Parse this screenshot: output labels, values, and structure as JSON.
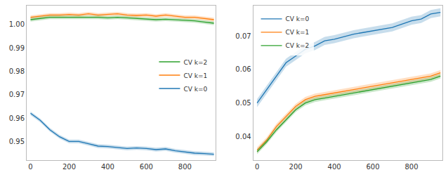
{
  "chart_data": [
    {
      "type": "line",
      "x": [
        0,
        50,
        100,
        150,
        200,
        250,
        300,
        350,
        400,
        450,
        500,
        550,
        600,
        650,
        700,
        750,
        800,
        850,
        900,
        950
      ],
      "series": [
        {
          "name": "CV k=0",
          "color": "#1f77b4",
          "values": [
            0.962,
            0.959,
            0.955,
            0.952,
            0.95,
            0.95,
            0.949,
            0.948,
            0.9478,
            0.9475,
            0.947,
            0.9472,
            0.947,
            0.9465,
            0.9468,
            0.946,
            0.9455,
            0.945,
            0.9448,
            0.9445
          ],
          "errors": [
            0.0008,
            0.0008,
            0.0008,
            0.0008,
            0.0008,
            0.0008,
            0.0008,
            0.0008,
            0.0008,
            0.0008,
            0.0008,
            0.0008,
            0.0008,
            0.0008,
            0.0008,
            0.0008,
            0.0008,
            0.0008,
            0.0008,
            0.0008
          ]
        },
        {
          "name": "CV k=1",
          "color": "#ff7f0e",
          "values": [
            1.003,
            1.0035,
            1.004,
            1.004,
            1.0042,
            1.004,
            1.0045,
            1.004,
            1.0042,
            1.0045,
            1.004,
            1.0038,
            1.004,
            1.0035,
            1.004,
            1.0035,
            1.003,
            1.003,
            1.0025,
            1.002
          ],
          "errors": [
            0.0008,
            0.0008,
            0.0008,
            0.0008,
            0.0008,
            0.0008,
            0.0008,
            0.0008,
            0.0008,
            0.0008,
            0.0008,
            0.0008,
            0.0008,
            0.0008,
            0.0008,
            0.0008,
            0.0008,
            0.0008,
            0.0008,
            0.0008
          ]
        },
        {
          "name": "CV k=2",
          "color": "#2ca02c",
          "values": [
            1.002,
            1.0025,
            1.003,
            1.003,
            1.003,
            1.003,
            1.0032,
            1.003,
            1.0028,
            1.003,
            1.0028,
            1.0025,
            1.0022,
            1.002,
            1.0022,
            1.002,
            1.0018,
            1.0015,
            1.001,
            1.0005
          ],
          "errors": [
            0.0008,
            0.0008,
            0.0008,
            0.0008,
            0.0008,
            0.0008,
            0.0008,
            0.0008,
            0.0008,
            0.0008,
            0.0008,
            0.0008,
            0.0008,
            0.0008,
            0.0008,
            0.0008,
            0.0008,
            0.0008,
            0.0008,
            0.0008
          ]
        }
      ],
      "xlim": [
        -20,
        960
      ],
      "xticks": [
        0,
        200,
        400,
        600,
        800
      ],
      "ylim": [
        0.942,
        1.008
      ],
      "yticks": [
        0.95,
        0.96,
        0.97,
        0.98,
        0.99,
        {
          "value": 1.0,
          "label": "1.00"
        }
      ],
      "legend": "center right"
    },
    {
      "type": "line",
      "x": [
        0,
        50,
        100,
        150,
        200,
        250,
        300,
        350,
        400,
        450,
        500,
        550,
        600,
        650,
        700,
        750,
        800,
        850,
        900,
        950
      ],
      "series": [
        {
          "name": "CV k=0",
          "color": "#1f77b4",
          "values": [
            0.05,
            0.054,
            0.058,
            0.062,
            0.064,
            0.066,
            0.067,
            0.0685,
            0.069,
            0.0698,
            0.0705,
            0.071,
            0.0715,
            0.072,
            0.0725,
            0.0735,
            0.0745,
            0.075,
            0.0765,
            0.077
          ],
          "errors": [
            0.0012,
            0.0012,
            0.0012,
            0.0012,
            0.0012,
            0.0012,
            0.0012,
            0.0012,
            0.0012,
            0.0012,
            0.0012,
            0.0012,
            0.0012,
            0.0012,
            0.0012,
            0.0012,
            0.0012,
            0.0012,
            0.0012,
            0.0012
          ]
        },
        {
          "name": "CV k=1",
          "color": "#ff7f0e",
          "values": [
            0.036,
            0.039,
            0.043,
            0.046,
            0.049,
            0.051,
            0.052,
            0.0525,
            0.053,
            0.0535,
            0.054,
            0.0545,
            0.055,
            0.0555,
            0.056,
            0.0565,
            0.057,
            0.0575,
            0.058,
            0.059
          ],
          "errors": [
            0.0008,
            0.0008,
            0.0008,
            0.0008,
            0.0008,
            0.0008,
            0.0008,
            0.0008,
            0.0008,
            0.0008,
            0.0008,
            0.0008,
            0.0008,
            0.0008,
            0.0008,
            0.0008,
            0.0008,
            0.0008,
            0.0008,
            0.0008
          ]
        },
        {
          "name": "CV k=2",
          "color": "#2ca02c",
          "values": [
            0.0355,
            0.0385,
            0.042,
            0.045,
            0.048,
            0.05,
            0.051,
            0.0515,
            0.052,
            0.0525,
            0.053,
            0.0535,
            0.054,
            0.0545,
            0.055,
            0.0555,
            0.056,
            0.0565,
            0.057,
            0.058
          ],
          "errors": [
            0.0007,
            0.0007,
            0.0007,
            0.0007,
            0.0007,
            0.0007,
            0.0007,
            0.0007,
            0.0007,
            0.0007,
            0.0007,
            0.0007,
            0.0007,
            0.0007,
            0.0007,
            0.0007,
            0.0007,
            0.0007,
            0.0007,
            0.0007
          ]
        }
      ],
      "xlim": [
        -20,
        960
      ],
      "xticks": [
        0,
        200,
        400,
        600,
        800
      ],
      "ylim": [
        0.033,
        0.079
      ],
      "yticks": [
        0.04,
        0.05,
        0.06,
        0.07
      ],
      "legend": "upper left"
    }
  ]
}
